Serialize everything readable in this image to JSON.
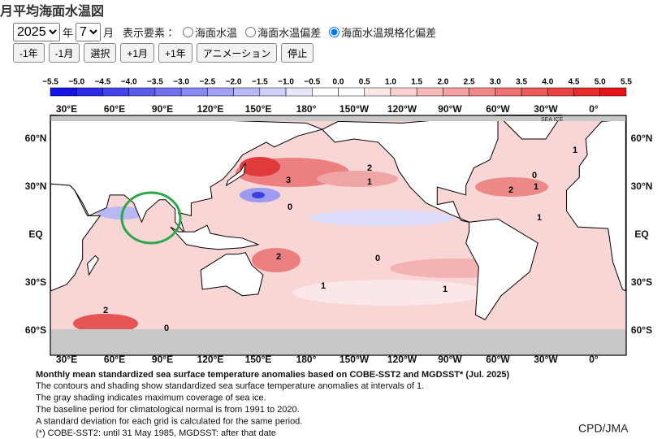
{
  "header": {
    "title": "月平均海面水温図"
  },
  "controls": {
    "year": "2025",
    "year_unit": "年",
    "month": "7",
    "month_unit": "月",
    "display_label": "表示要素：",
    "options": [
      {
        "label": "海面水温",
        "selected": false
      },
      {
        "label": "海面水温偏差",
        "selected": false
      },
      {
        "label": "海面水温規格化偏差",
        "selected": true
      }
    ],
    "buttons": [
      "-1年",
      "-1月",
      "選択",
      "+1月",
      "+1年",
      "アニメーション",
      "停止"
    ]
  },
  "colorbar": {
    "labels": [
      "−5.5",
      "−5.0",
      "−4.5",
      "−4.0",
      "−3.5",
      "−3.0",
      "−2.5",
      "−2.0",
      "−1.5",
      "−1.0",
      "−0.5",
      "0.0",
      "0.5",
      "1.0",
      "1.5",
      "2.0",
      "2.5",
      "3.0",
      "3.5",
      "4.0",
      "4.5",
      "5.0",
      "5.5"
    ]
  },
  "map": {
    "lon_labels": [
      "30°E",
      "60°E",
      "90°E",
      "120°E",
      "150°E",
      "180°",
      "150°W",
      "120°W",
      "90°W",
      "60°W",
      "30°W",
      "0°"
    ],
    "lat_labels": [
      "60°N",
      "30°N",
      "EQ",
      "30°S",
      "60°S"
    ],
    "sea_ice_label": "SEA ICE",
    "contour_labels": [
      "2",
      "1",
      "3",
      "0",
      "2",
      "0",
      "1",
      "2",
      "1",
      "1",
      "0",
      "2",
      "1",
      "1",
      "0"
    ]
  },
  "caption": {
    "title": "Monthly mean standardized sea surface temperature anomalies based on COBE-SST2 and MGDSST* (Jul. 2025)",
    "lines": [
      "The contours and shading show standardized sea surface temperature anomalies at intervals of 1.",
      "The gray shading indicates maximum coverage of sea ice.",
      "The baseline period for climatological normal is from 1991 to 2020.",
      "A standard deviation for each grid is calculated for the same period.",
      "(*) COBE-SST2: until 31 May 1985, MGDSST: after that date"
    ]
  },
  "credit": "CPD/JMA"
}
